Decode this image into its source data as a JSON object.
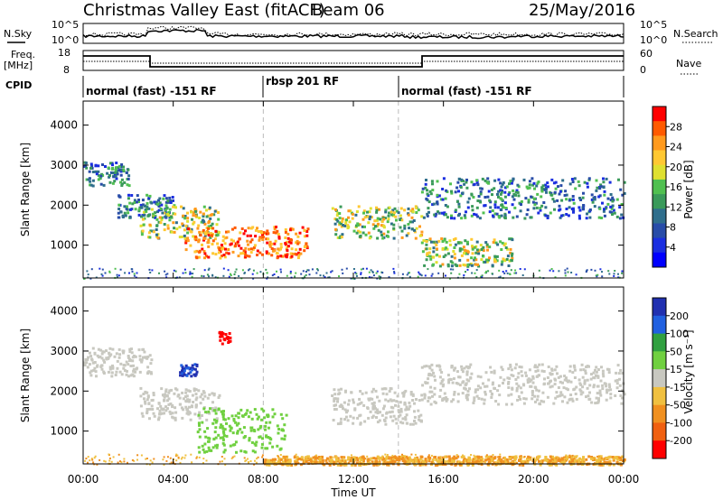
{
  "header": {
    "title": "Christmas Valley East (fitACF)",
    "beam": "Beam 06",
    "date": "25/May/2016"
  },
  "top_panels": {
    "nsky_label": "N.Sky",
    "nsearch_label": "N.Search",
    "noise_ticks_left": [
      "10^5",
      "10^0"
    ],
    "noise_ticks_right": [
      "10^5",
      "10^0"
    ],
    "freq_label": "Freq.",
    "freq_unit": "[MHz]",
    "freq_ticks": [
      "18",
      "8"
    ],
    "nave_label": "Nave",
    "nave_ticks": [
      "60",
      "0"
    ],
    "cpid_label": "CPID",
    "cpid_segments": [
      {
        "label": "normal (fast) -151 RF",
        "start_hour": 0
      },
      {
        "label": "rbsp 201 RF",
        "start_hour": 8
      },
      {
        "label": "normal (fast) -151 RF",
        "start_hour": 14
      }
    ]
  },
  "colorbars": {
    "power": {
      "label": "Power [dB]",
      "ticks": [
        "28",
        "24",
        "20",
        "16",
        "12",
        "8",
        "4"
      ],
      "colors": [
        "#ff0000",
        "#ff5a00",
        "#ff9a1e",
        "#ffc832",
        "#dfe030",
        "#50c050",
        "#3a9a5a",
        "#2f6e8c",
        "#284ca8",
        "#1a2ee0",
        "#0000ff"
      ]
    },
    "velocity": {
      "label": "Velocity [m s⁻¹]",
      "ticks": [
        "200",
        "100",
        "50",
        "15",
        "-15",
        "-50",
        "-100",
        "-200"
      ],
      "colors": [
        "#2030b0",
        "#2060e0",
        "#30a040",
        "#70d040",
        "#c8c8c0",
        "#f0c040",
        "#f09020",
        "#f06010",
        "#ff0000"
      ]
    }
  },
  "axes": {
    "ylabel": "Slant Range [km]",
    "xlabel": "Time UT",
    "yticks": [
      "1000",
      "2000",
      "3000",
      "4000"
    ],
    "xticks": [
      "00:00",
      "04:00",
      "08:00",
      "12:00",
      "16:00",
      "20:00",
      "00:00"
    ]
  },
  "chart_data": [
    {
      "type": "heatmap",
      "name": "Power",
      "x_range_hours": [
        0,
        24
      ],
      "y_range_km": [
        180,
        4600
      ],
      "regions": [
        {
          "t0": 0.0,
          "t1": 2.0,
          "r0": 2500,
          "r1": 3100,
          "level": "mid"
        },
        {
          "t0": 1.5,
          "t1": 4.0,
          "r0": 1700,
          "r1": 2300,
          "level": "mid"
        },
        {
          "t0": 2.5,
          "t1": 6.0,
          "r0": 1200,
          "r1": 2000,
          "level": "high"
        },
        {
          "t0": 4.5,
          "t1": 10.0,
          "r0": 700,
          "r1": 1500,
          "level": "peak"
        },
        {
          "t0": 11.0,
          "t1": 15.0,
          "r0": 1200,
          "r1": 2000,
          "level": "high"
        },
        {
          "t0": 15.0,
          "t1": 24.0,
          "r0": 1700,
          "r1": 2700,
          "level": "mid"
        },
        {
          "t0": 15.0,
          "t1": 19.0,
          "r0": 500,
          "r1": 1200,
          "level": "high"
        }
      ]
    },
    {
      "type": "heatmap",
      "name": "Velocity",
      "x_range_hours": [
        0,
        24
      ],
      "y_range_km": [
        180,
        4600
      ],
      "regions": [
        {
          "t0": 0.0,
          "t1": 3.0,
          "r0": 2400,
          "r1": 3100,
          "vel": "-15..15"
        },
        {
          "t0": 2.5,
          "t1": 6.0,
          "r0": 1300,
          "r1": 2100,
          "vel": "-15..15"
        },
        {
          "t0": 5.0,
          "t1": 9.0,
          "r0": 500,
          "r1": 1600,
          "vel": "15..50"
        },
        {
          "t0": 4.2,
          "t1": 5.0,
          "r0": 2400,
          "r1": 2700,
          "vel": ">100"
        },
        {
          "t0": 6.0,
          "t1": 6.5,
          "r0": 3200,
          "r1": 3500,
          "vel": "<-200"
        },
        {
          "t0": 11.0,
          "t1": 15.0,
          "r0": 1200,
          "r1": 2100,
          "vel": "-15..15"
        },
        {
          "t0": 15.0,
          "t1": 24.0,
          "r0": 1700,
          "r1": 2700,
          "vel": "-15..15"
        },
        {
          "t0": 8.0,
          "t1": 24.0,
          "r0": 180,
          "r1": 400,
          "vel": "-50..-15"
        }
      ]
    }
  ]
}
